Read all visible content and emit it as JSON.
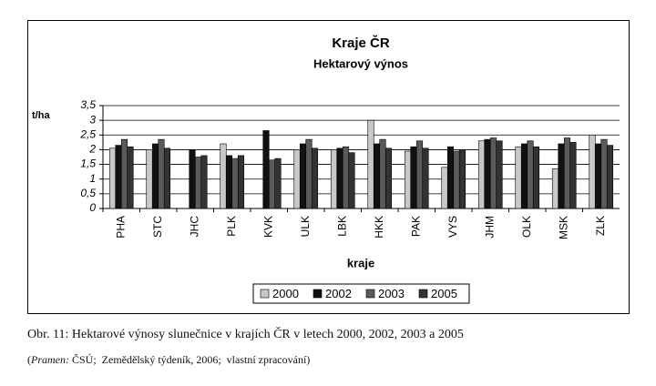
{
  "chart_data": {
    "type": "bar",
    "title": "Kraje ČR",
    "subtitle": "Hektarový výnos",
    "y_label": "t/ha",
    "x_label": "kraje",
    "categories": [
      "PHA",
      "STC",
      "JHC",
      "PLK",
      "KVK",
      "ULK",
      "LBK",
      "HKK",
      "PAK",
      "VYS",
      "JHM",
      "OLK",
      "MSK",
      "ZLK"
    ],
    "series": [
      {
        "name": "2000",
        "color": "#c8c8c8",
        "values": [
          2.05,
          2.0,
          null,
          2.2,
          null,
          2.0,
          2.0,
          3.0,
          1.95,
          1.4,
          2.3,
          2.1,
          1.35,
          2.5
        ]
      },
      {
        "name": "2002",
        "color": "#111111",
        "values": [
          2.15,
          2.2,
          2.0,
          1.8,
          2.65,
          2.2,
          2.05,
          2.2,
          2.1,
          2.1,
          2.35,
          2.2,
          2.2,
          2.2
        ]
      },
      {
        "name": "2003",
        "color": "#5a5a5a",
        "values": [
          2.35,
          2.35,
          1.75,
          1.7,
          1.65,
          2.35,
          2.1,
          2.35,
          2.3,
          1.95,
          2.4,
          2.3,
          2.4,
          2.35
        ]
      },
      {
        "name": "2005",
        "color": "#333333",
        "values": [
          2.1,
          2.05,
          1.8,
          1.8,
          1.7,
          2.05,
          1.9,
          2.05,
          2.05,
          2.0,
          2.3,
          2.1,
          2.25,
          2.15
        ]
      }
    ],
    "ylim": [
      0,
      3.5
    ],
    "yticks": [
      0,
      {
        "value": 0.5,
        "label": "0,5"
      },
      1,
      {
        "value": 1.5,
        "label": "1,5"
      },
      2,
      {
        "value": 2.5,
        "label": "2,5"
      },
      3,
      {
        "value": 3.5,
        "label": "3,5"
      }
    ],
    "grid": true,
    "legend": "bottom"
  },
  "caption": "Obr. 11: Hektarové výnosy slunečnice v krajích ČR v letech 2000, 2002, 2003 a 2005",
  "source": {
    "open": "(",
    "label": "Pramen:",
    "text": " ČSÚ;  Zemědělský týdeník, 2006;  vlastní zpracování)"
  }
}
